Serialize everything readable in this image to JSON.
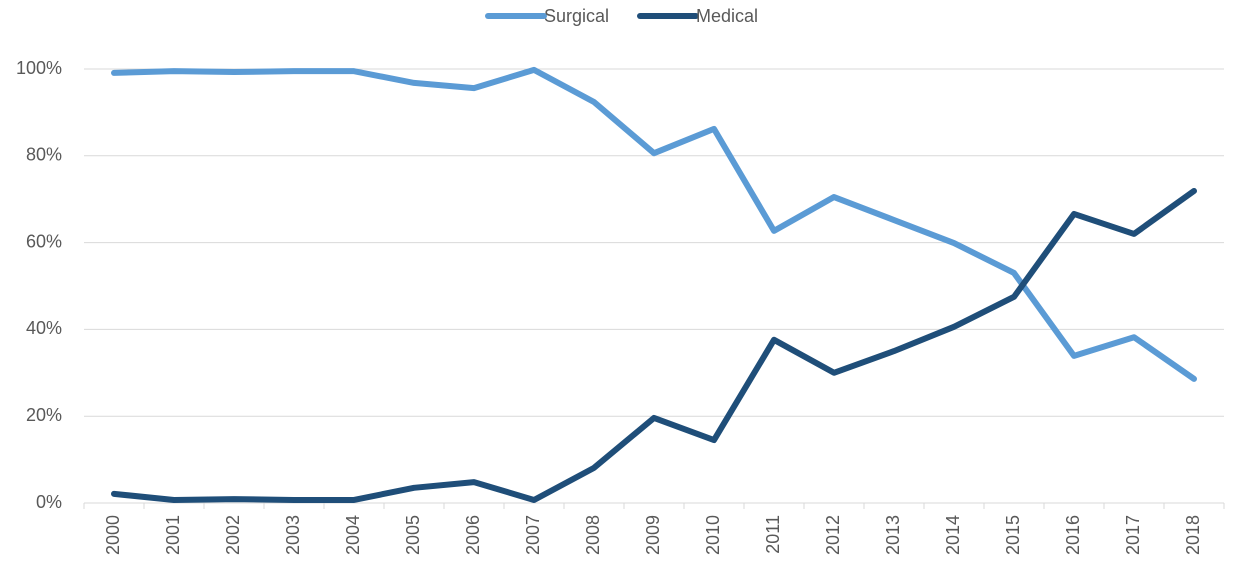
{
  "chart_data": {
    "type": "line",
    "categories": [
      "2000",
      "2001",
      "2002",
      "2003",
      "2004",
      "2005",
      "2006",
      "2007",
      "2008",
      "2009",
      "2010",
      "2011",
      "2012",
      "2013",
      "2014",
      "2015",
      "2016",
      "2017",
      "2018"
    ],
    "series": [
      {
        "name": "Surgical",
        "color": "#5b9bd5",
        "values": [
          99.1,
          99.5,
          99.3,
          99.5,
          99.5,
          96.8,
          95.6,
          99.8,
          92.4,
          80.6,
          86.2,
          62.7,
          70.5,
          65.2,
          59.9,
          53,
          33.9,
          38.2,
          28.6
        ]
      },
      {
        "name": "Medical",
        "color": "#1f4e79",
        "values": [
          2.1,
          0.7,
          0.9,
          0.7,
          0.7,
          3.5,
          4.8,
          0.7,
          8.1,
          19.6,
          14.5,
          37.6,
          30,
          35,
          40.6,
          47.5,
          66.6,
          62,
          71.9
        ]
      }
    ],
    "ylim": [
      0,
      100
    ],
    "yticks": [
      {
        "value": 0,
        "label": "0%"
      },
      {
        "value": 20,
        "label": "20%"
      },
      {
        "value": 40,
        "label": "40%"
      },
      {
        "value": 60,
        "label": "60%"
      },
      {
        "value": 80,
        "label": "80%"
      },
      {
        "value": 100,
        "label": "100%"
      }
    ],
    "grid": true,
    "legend": "top"
  }
}
